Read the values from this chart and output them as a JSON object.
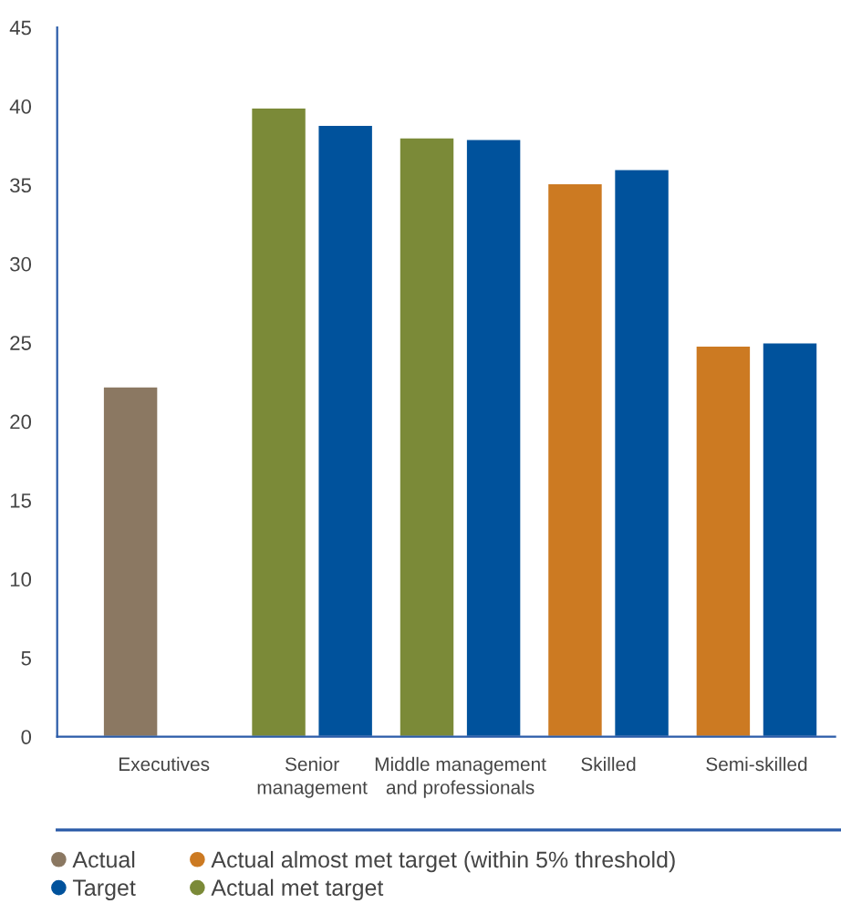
{
  "chart_data": {
    "type": "bar",
    "categories": [
      "Executives",
      "Senior\nmanagement",
      "Middle management\nand professionals",
      "Skilled",
      "Semi-skilled"
    ],
    "series": [
      {
        "name": "Actual",
        "color": "#8b7862",
        "values": [
          22.2,
          null,
          null,
          null,
          null
        ]
      },
      {
        "name": "Actual almost met target (within 5% threshold)",
        "color": "#cc7a22",
        "values": [
          null,
          null,
          null,
          35.1,
          24.8
        ]
      },
      {
        "name": "Target",
        "color": "#00529c",
        "values": [
          null,
          38.8,
          37.9,
          36.0,
          25.0
        ]
      },
      {
        "name": "Actual met target",
        "color": "#7b8a38",
        "values": [
          null,
          39.9,
          38.0,
          null,
          null
        ]
      }
    ],
    "ylim": [
      0,
      45
    ],
    "yticks": [
      0,
      5,
      10,
      15,
      20,
      25,
      30,
      35,
      40,
      45
    ],
    "grid": false,
    "legend": "bottom",
    "marker": "circle"
  }
}
